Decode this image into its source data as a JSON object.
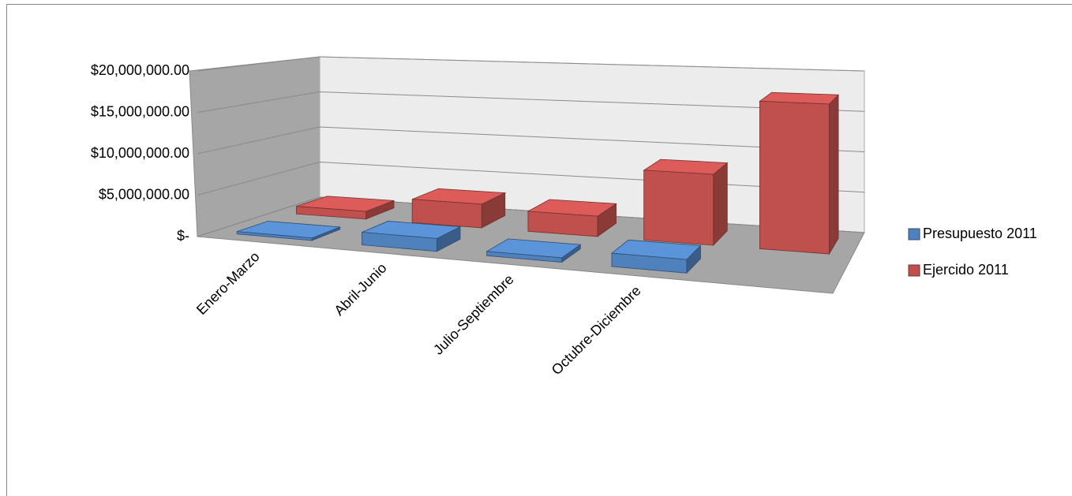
{
  "chart_data": {
    "type": "bar3d",
    "categories": [
      "Enero-Marzo",
      "Abril-Junio",
      "Julio-Septiembre",
      "Octubre-Diciembre",
      null
    ],
    "series": [
      {
        "name": "Presupuesto 2011",
        "color": "#4f81bd",
        "values": [
          300000,
          1500000,
          500000,
          1500000,
          null
        ]
      },
      {
        "name": "Ejercido 2011",
        "color": "#c0504d",
        "values": [
          1000000,
          3000000,
          2500000,
          8500000,
          17500000
        ]
      }
    ],
    "ylim": [
      0,
      20000000
    ],
    "yticks": [
      {
        "value": 0,
        "label": "$-"
      },
      {
        "value": 5000000,
        "label": "$5,000,000.00"
      },
      {
        "value": 10000000,
        "label": "$10,000,000.00"
      },
      {
        "value": 15000000,
        "label": "$15,000,000.00"
      },
      {
        "value": 20000000,
        "label": "$20,000,000.00"
      }
    ],
    "grid": true,
    "legend": "right"
  }
}
